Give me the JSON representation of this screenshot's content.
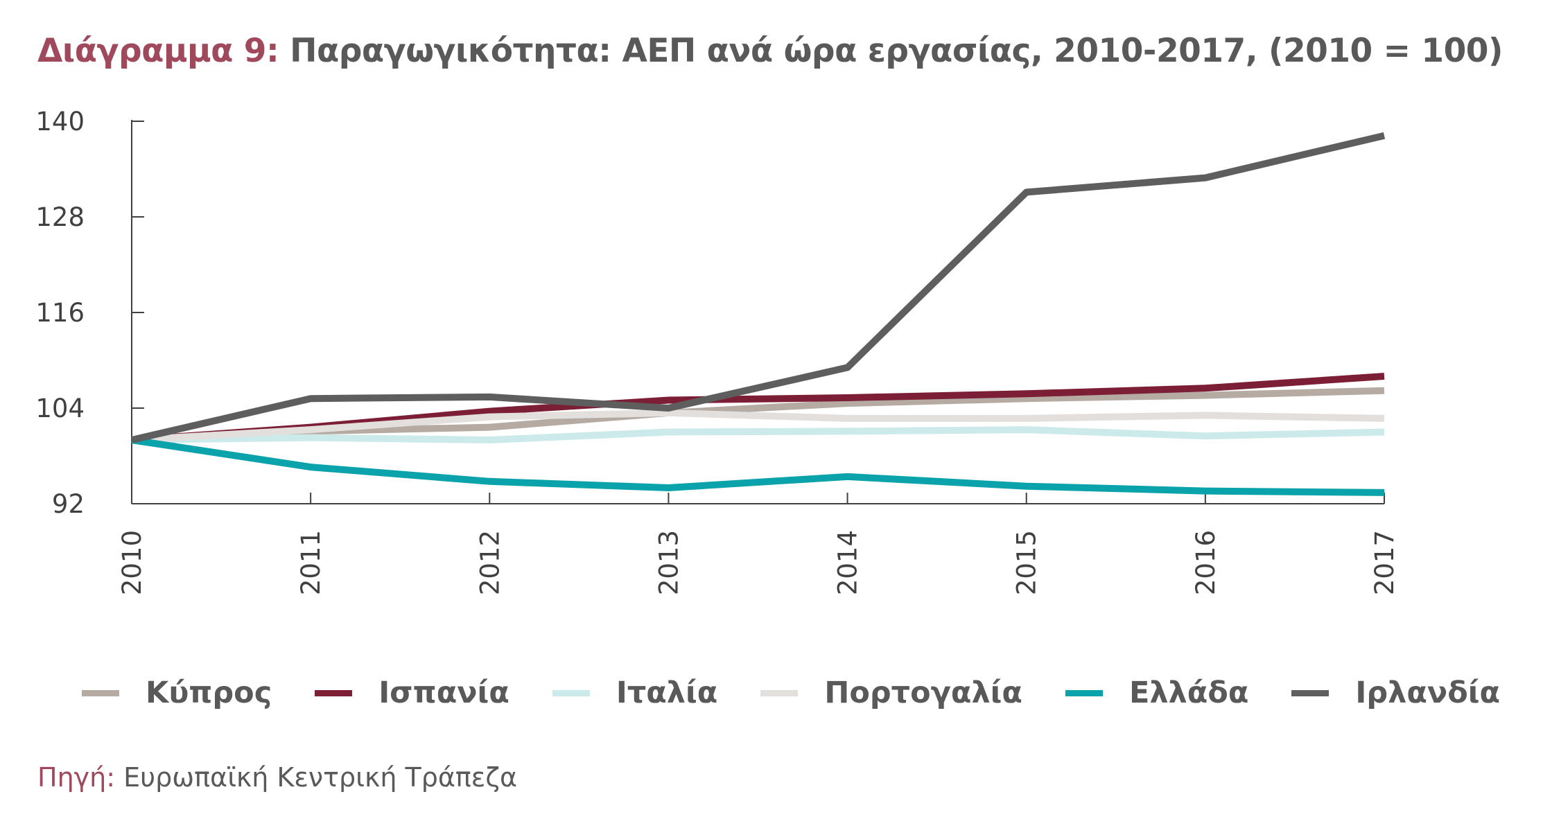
{
  "title": {
    "prefix": "Διάγραμμα 9:",
    "text": "Παραγωγικότητα: ΑΕΠ ανά ώρα εργασίας, 2010-2017, (2010 = 100)"
  },
  "source": {
    "prefix": "Πηγή:",
    "text": "Ευρωπαϊκή Κεντρική Τράπεζα"
  },
  "chart_data": {
    "type": "line",
    "title": "Παραγωγικότητα: ΑΕΠ ανά ώρα εργασίας, 2010-2017, (2010 = 100)",
    "xlabel": "",
    "ylabel": "",
    "x": [
      "2010",
      "2011",
      "2012",
      "2013",
      "2014",
      "2015",
      "2016",
      "2017"
    ],
    "ylim": [
      92,
      140
    ],
    "yticks": [
      92,
      104,
      116,
      128,
      140
    ],
    "grid": false,
    "legend_position": "bottom",
    "series": [
      {
        "name": "Κύπρος",
        "color": "#b5aba3",
        "values": [
          100,
          101.1,
          101.6,
          103.4,
          104.6,
          105.2,
          105.6,
          106.2
        ]
      },
      {
        "name": "Ισπανία",
        "color": "#7c1e35",
        "values": [
          100,
          101.6,
          103.6,
          105.0,
          105.3,
          105.8,
          106.5,
          108.0
        ]
      },
      {
        "name": "Ιταλία",
        "color": "#cdeaea",
        "values": [
          100,
          100.3,
          100.0,
          101.0,
          101.1,
          101.3,
          100.5,
          101.0
        ]
      },
      {
        "name": "Πορτογαλία",
        "color": "#e2dfdc",
        "values": [
          100,
          101.3,
          102.9,
          103.4,
          102.7,
          102.7,
          103.1,
          102.7
        ]
      },
      {
        "name": "Ελλάδα",
        "color": "#0aa3ac",
        "values": [
          100,
          96.6,
          94.8,
          94.0,
          95.4,
          94.2,
          93.6,
          93.4
        ]
      },
      {
        "name": "Ιρλανδία",
        "color": "#5e5e5e",
        "values": [
          100,
          105.2,
          105.4,
          104.0,
          109.1,
          131.1,
          132.9,
          138.2
        ]
      }
    ]
  }
}
